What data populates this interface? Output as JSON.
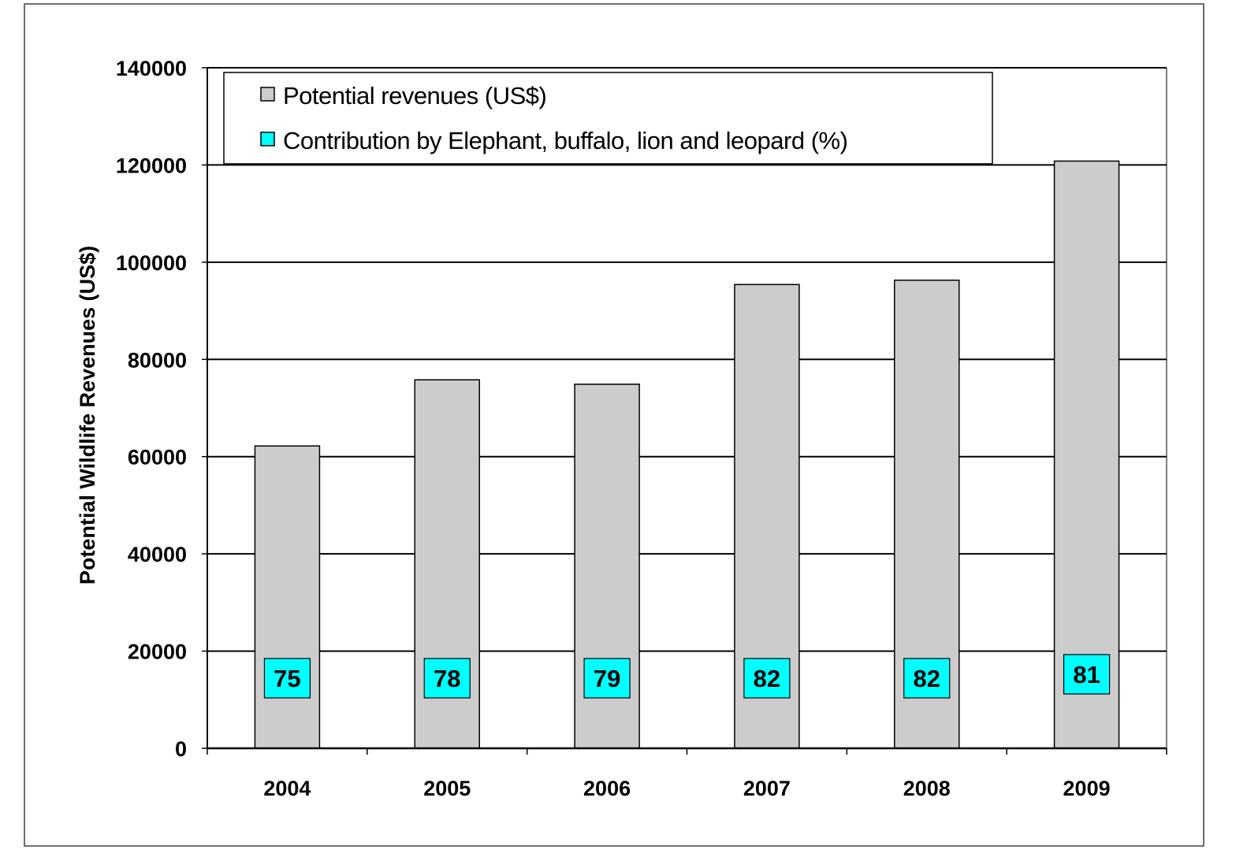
{
  "chart_data": {
    "type": "bar",
    "categories": [
      "2004",
      "2005",
      "2006",
      "2007",
      "2008",
      "2009"
    ],
    "series": [
      {
        "name": "Potential revenues (US$)",
        "values": [
          62200,
          75800,
          74900,
          95400,
          96300,
          120800
        ],
        "color": "#cccccc"
      },
      {
        "name": "Contribution by Elephant, buffalo, lion and leopard (%)",
        "values": [
          75,
          78,
          79,
          82,
          82,
          81
        ],
        "color": "#00ffff"
      }
    ],
    "title": "",
    "xlabel": "",
    "ylabel": "Potential Wildlife Revenues (US$)",
    "ylim": [
      0,
      140000
    ],
    "yticks": [
      0,
      20000,
      40000,
      60000,
      80000,
      100000,
      120000,
      140000
    ],
    "grid": true,
    "legend_position": "top-left"
  }
}
